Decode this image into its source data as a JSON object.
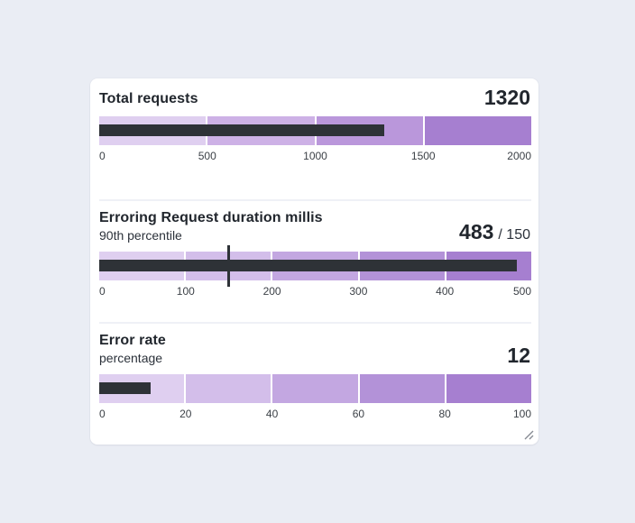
{
  "page": {
    "background": "#EAEDF4"
  },
  "card": {
    "background": "#FFFFFF",
    "divider_color": "#EFF1F6"
  },
  "chart_data": [
    {
      "type": "bar",
      "subtype": "bullet",
      "title": "Total requests",
      "subtitle": null,
      "value": 1320,
      "value_label": "1320",
      "target": null,
      "target_label": null,
      "axis": {
        "min": 0,
        "max": 2000,
        "ticks": [
          0,
          500,
          1000,
          1500,
          2000
        ]
      },
      "bands": [
        {
          "from": 0,
          "to": 500,
          "color": "#DFCFF0"
        },
        {
          "from": 500,
          "to": 1000,
          "color": "#CDB1E6"
        },
        {
          "from": 1000,
          "to": 1500,
          "color": "#BA97DB"
        },
        {
          "from": 1500,
          "to": 2000,
          "color": "#A67FD0"
        }
      ],
      "bar_color": "#2E3237"
    },
    {
      "type": "bar",
      "subtype": "bullet",
      "title": "Erroring Request duration millis",
      "subtitle": "90th percentile",
      "value": 483,
      "value_label": "483",
      "target": 150,
      "target_label": "/ 150",
      "axis": {
        "min": 0,
        "max": 500,
        "ticks": [
          0,
          100,
          200,
          300,
          400,
          500
        ]
      },
      "bands": [
        {
          "from": 0,
          "to": 100,
          "color": "#DFCFF0"
        },
        {
          "from": 100,
          "to": 200,
          "color": "#D3BEEA"
        },
        {
          "from": 200,
          "to": 300,
          "color": "#C3A7E1"
        },
        {
          "from": 300,
          "to": 400,
          "color": "#B392D8"
        },
        {
          "from": 400,
          "to": 500,
          "color": "#A67FD0"
        }
      ],
      "bar_color": "#2E3237"
    },
    {
      "type": "bar",
      "subtype": "bullet",
      "title": "Error rate",
      "subtitle": "percentage",
      "value": 12,
      "value_label": "12",
      "target": null,
      "target_label": null,
      "axis": {
        "min": 0,
        "max": 100,
        "ticks": [
          0,
          20,
          40,
          60,
          80,
          100
        ]
      },
      "bands": [
        {
          "from": 0,
          "to": 20,
          "color": "#DFCFF0"
        },
        {
          "from": 20,
          "to": 40,
          "color": "#D3BEEA"
        },
        {
          "from": 40,
          "to": 60,
          "color": "#C3A7E1"
        },
        {
          "from": 60,
          "to": 80,
          "color": "#B392D8"
        },
        {
          "from": 80,
          "to": 100,
          "color": "#A67FD0"
        }
      ],
      "bar_color": "#2E3237"
    }
  ]
}
